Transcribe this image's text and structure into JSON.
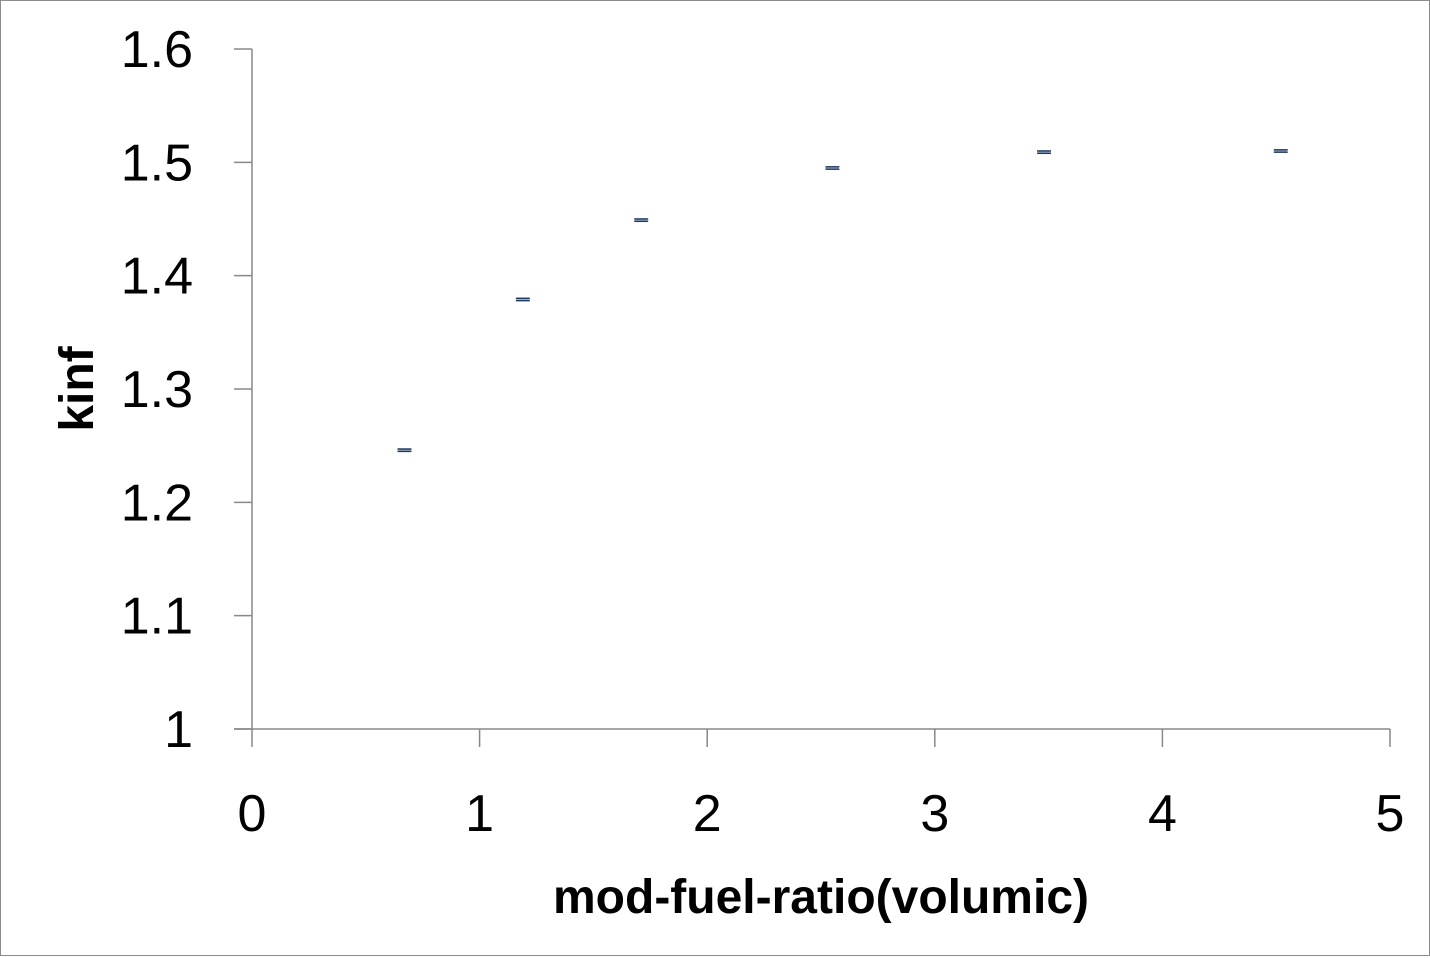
{
  "chart_data": {
    "type": "scatter",
    "title": "",
    "xlabel": "mod-fuel-ratio(volumic)",
    "ylabel": "kinf",
    "xlim": [
      0,
      5
    ],
    "ylim": [
      1,
      1.6
    ],
    "x_ticks": [
      "0",
      "1",
      "2",
      "3",
      "4",
      "5"
    ],
    "y_ticks": [
      "1",
      "1.1",
      "1.2",
      "1.3",
      "1.4",
      "1.5",
      "1.6"
    ],
    "grid": false,
    "legend": "none",
    "error_bars": true,
    "series": [
      {
        "x": [
          0.67,
          1.19,
          1.71,
          2.55,
          3.48,
          4.52
        ],
        "y": [
          1.246,
          1.379,
          1.449,
          1.495,
          1.509,
          1.51
        ],
        "error": [
          0.001,
          0.001,
          0.001,
          0.001,
          0.001,
          0.001
        ],
        "color": "#1f3a5f"
      }
    ]
  }
}
